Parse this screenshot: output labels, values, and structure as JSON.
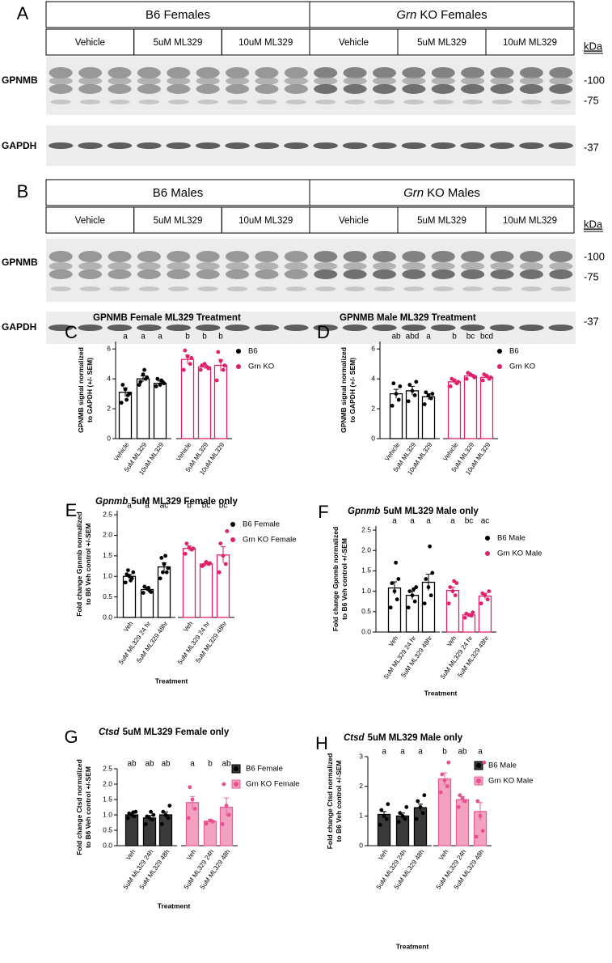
{
  "blots": [
    {
      "panel": "A",
      "groups": [
        {
          "name": "B6 Females",
          "treatments": [
            "Vehicle",
            "5uM ML329",
            "10uM ML329"
          ]
        },
        {
          "name_em": "Grn",
          "name": "KO Females",
          "treatments": [
            "Vehicle",
            "5uM ML329",
            "10uM ML329"
          ]
        }
      ],
      "rows": [
        "GPNMB",
        "GAPDH"
      ],
      "kda": "kDa",
      "markers": [
        "-100",
        "-75",
        "-37"
      ]
    },
    {
      "panel": "B",
      "groups": [
        {
          "name": "B6 Males",
          "treatments": [
            "Vehicle",
            "5uM ML329",
            "10uM ML329"
          ]
        },
        {
          "name_em": "Grn",
          "name": "KO Males",
          "treatments": [
            "Vehicle",
            "5uM ML329",
            "10uM ML329"
          ]
        }
      ],
      "rows": [
        "GPNMB",
        "GAPDH"
      ],
      "kda": "kDa",
      "markers": [
        "-100",
        "-75",
        "-37"
      ]
    }
  ],
  "chart_data": [
    {
      "type": "bar",
      "panel": "C",
      "title": "GPNMB Female ML329 Treatment",
      "ylabel": [
        "GPNMB signal normalized",
        "to GAPDH (+/- SEM)"
      ],
      "categories": [
        "Vehicle",
        "5uM ML329",
        "10uM ML329",
        "Vehicle",
        "5uM ML329",
        "10uM ML329"
      ],
      "letters": [
        "a",
        "a",
        "a",
        "b",
        "b",
        "b"
      ],
      "ylim": [
        0,
        6.5
      ],
      "yticks": [
        0,
        2,
        4,
        6
      ],
      "filled": false,
      "series": [
        {
          "name": "B6",
          "color": "#000000",
          "values": [
            3.1,
            4.0,
            3.7,
            null,
            null,
            null
          ],
          "errors": [
            0.3,
            0.2,
            0.15,
            null,
            null,
            null
          ],
          "points": [
            [
              2.4,
              2.9,
              3.3,
              3.6,
              3.0,
              2.6
            ],
            [
              3.6,
              4.0,
              4.3,
              3.8,
              4.1,
              4.6
            ],
            [
              3.5,
              3.8,
              3.6,
              4.0,
              3.7,
              3.9
            ],
            null,
            null,
            null
          ]
        },
        {
          "name": "Grn KO",
          "color": "#e0206a",
          "values": [
            null,
            null,
            null,
            5.3,
            4.8,
            4.9
          ],
          "errors": [
            null,
            null,
            null,
            0.3,
            0.15,
            0.4
          ],
          "points": [
            null,
            null,
            null,
            [
              4.6,
              5.0,
              5.5,
              5.9,
              5.4
            ],
            [
              4.6,
              4.8,
              5.0,
              4.9,
              4.7
            ],
            [
              3.9,
              4.6,
              5.2,
              5.8,
              4.9
            ]
          ]
        }
      ]
    },
    {
      "type": "bar",
      "panel": "D",
      "title": "GPNMB Male ML329 Treatment",
      "ylabel": [
        "GPNMB signal normalized",
        "to GAPDH (+/- SEM)"
      ],
      "categories": [
        "Vehicle",
        "5uM ML329",
        "10uM ML329",
        "Vehicle",
        "5uM ML329",
        "10uM ML329"
      ],
      "letters": [
        "ab",
        "abd",
        "a",
        "b",
        "bc",
        "bcd"
      ],
      "ylim": [
        0,
        6.5
      ],
      "yticks": [
        0,
        2,
        4,
        6
      ],
      "filled": false,
      "series": [
        {
          "name": "B6",
          "color": "#000000",
          "values": [
            3.0,
            3.2,
            2.8,
            null,
            null,
            null
          ],
          "errors": [
            0.3,
            0.3,
            0.2,
            null,
            null,
            null
          ],
          "points": [
            [
              2.2,
              2.6,
              3.0,
              3.7,
              3.5
            ],
            [
              2.5,
              2.9,
              3.2,
              3.6,
              3.8
            ],
            [
              2.3,
              2.7,
              2.9,
              3.1,
              3.0
            ],
            null,
            null,
            null
          ]
        },
        {
          "name": "Grn KO",
          "color": "#e0206a",
          "values": [
            null,
            null,
            null,
            3.8,
            4.2,
            4.1
          ],
          "errors": [
            null,
            null,
            null,
            0.15,
            0.1,
            0.1
          ],
          "points": [
            null,
            null,
            null,
            [
              3.5,
              3.7,
              3.9,
              4.0,
              3.8
            ],
            [
              4.0,
              4.2,
              4.3,
              4.4,
              4.1
            ],
            [
              3.9,
              4.0,
              4.2,
              4.3,
              4.1
            ]
          ]
        }
      ]
    },
    {
      "type": "bar",
      "panel": "E",
      "title_em": "Gpnmb",
      "title": "5uM ML329 Female only",
      "ylabel": [
        "Fold change Gpnmb normalized",
        "to B6 Veh control +/-SEM"
      ],
      "xlabel": "Treatment",
      "categories": [
        "Veh",
        "5uM ML329 24 hr",
        "5uM ML329 48hr",
        "Veh",
        "5uM ML329 24 hr",
        "5uM ML329 48hr"
      ],
      "letters": [
        "a",
        "a",
        "ac",
        "b",
        "bc",
        "bc"
      ],
      "ylim": [
        0,
        2.6
      ],
      "yticks": [
        {
          "value": 0,
          "label": "0.0"
        },
        0.5,
        {
          "value": 1,
          "label": "1.0"
        },
        1.5,
        {
          "value": 2,
          "label": "2.0"
        },
        2.5
      ],
      "filled": false,
      "series": [
        {
          "name": "B6 Female",
          "color": "#000000",
          "values": [
            1.0,
            0.68,
            1.23,
            null,
            null,
            null
          ],
          "errors": [
            0.05,
            0.04,
            0.1,
            null,
            null,
            null
          ],
          "points": [
            [
              0.85,
              0.95,
              1.0,
              1.05,
              1.1,
              0.9,
              1.15
            ],
            [
              0.6,
              0.65,
              0.7,
              0.75,
              0.62,
              0.72
            ],
            [
              0.95,
              1.1,
              1.3,
              1.45,
              1.2,
              1.5,
              1.1
            ],
            null,
            null,
            null
          ]
        },
        {
          "name": "Grn KO Female",
          "color": "#e0206a",
          "values": [
            null,
            null,
            null,
            1.68,
            1.3,
            1.52
          ],
          "errors": [
            null,
            null,
            null,
            0.06,
            0.05,
            0.2
          ],
          "points": [
            null,
            null,
            null,
            [
              1.55,
              1.65,
              1.7,
              1.8,
              1.68
            ],
            [
              1.25,
              1.3,
              1.35,
              1.28,
              1.32
            ],
            [
              1.1,
              1.3,
              1.5,
              1.8,
              2.1
            ]
          ]
        }
      ]
    },
    {
      "type": "bar",
      "panel": "F",
      "title_em": "Gpnmb",
      "title": "5uM ML329 Male only",
      "ylabel": [
        "Fold change Gpnmb normalized",
        "to B6 Veh control +/-SEM"
      ],
      "xlabel": "Treatment",
      "categories": [
        "Veh",
        "5uM ML329 24 hr",
        "5uM ML329 48hr",
        "Veh",
        "5uM ML329 24 hr",
        "5uM ML329 48hr"
      ],
      "letters": [
        "a",
        "a",
        "a",
        "a",
        "bc",
        "ac"
      ],
      "ylim": [
        0,
        2.6
      ],
      "yticks": [
        {
          "value": 0,
          "label": "0.0"
        },
        0.5,
        {
          "value": 1,
          "label": "1.0"
        },
        1.5,
        {
          "value": 2,
          "label": "2.0"
        },
        2.5
      ],
      "filled": false,
      "series": [
        {
          "name": "B6 Male",
          "color": "#000000",
          "values": [
            1.08,
            0.9,
            1.22,
            null,
            null,
            null
          ],
          "errors": [
            0.15,
            0.1,
            0.2,
            null,
            null,
            null
          ],
          "points": [
            [
              0.6,
              0.8,
              1.0,
              1.2,
              1.3,
              1.7
            ],
            [
              0.6,
              0.75,
              0.9,
              1.0,
              1.1,
              1.05
            ],
            [
              0.7,
              0.9,
              1.1,
              1.3,
              1.45,
              2.1
            ],
            null,
            null,
            null
          ]
        },
        {
          "name": "Grn KO Male",
          "color": "#e0206a",
          "values": [
            null,
            null,
            null,
            1.02,
            0.42,
            0.88
          ],
          "errors": [
            null,
            null,
            null,
            0.08,
            0.03,
            0.07
          ],
          "points": [
            null,
            null,
            null,
            [
              0.7,
              0.9,
              1.0,
              1.1,
              1.2,
              1.25
            ],
            [
              0.35,
              0.4,
              0.42,
              0.45,
              0.48
            ],
            [
              0.7,
              0.8,
              0.9,
              0.95,
              1.0
            ]
          ]
        }
      ]
    },
    {
      "type": "bar",
      "panel": "G",
      "title_em": "Ctsd",
      "title": "5uM ML329 Female only",
      "ylabel": [
        "Fold change Ctsd normalized",
        "to B6 Veh control +/-SEM"
      ],
      "xlabel": "Treatment",
      "categories": [
        "Veh",
        "5uM ML329 24h",
        "5uM ML329 48h",
        "Veh",
        "5uM ML329 24h",
        "5uM ML329 48h"
      ],
      "letters": [
        "ab",
        "ab",
        "ab",
        "a",
        "b",
        "ab"
      ],
      "ylim": [
        0,
        2.5
      ],
      "yticks": [
        {
          "value": 0,
          "label": "0.0"
        },
        0.5,
        {
          "value": 1,
          "label": "1.0"
        },
        1.5,
        {
          "value": 2,
          "label": "2.0"
        },
        2.5
      ],
      "filled": true,
      "series": [
        {
          "name": "B6 Female",
          "color": "#3a3a3a",
          "values": [
            1.0,
            0.9,
            1.0,
            null,
            null,
            null
          ],
          "errors": [
            0.05,
            0.08,
            0.1,
            null,
            null,
            null
          ],
          "points": [
            [
              0.9,
              0.95,
              1.0,
              1.05,
              1.1,
              1.08
            ],
            [
              0.7,
              0.85,
              0.9,
              0.95,
              1.0,
              1.1
            ],
            [
              0.7,
              0.9,
              1.0,
              1.1,
              1.3
            ],
            null,
            null,
            null
          ]
        },
        {
          "name": "Grn KO Female",
          "color": "#f2a1c0",
          "values": [
            null,
            null,
            null,
            1.4,
            0.8,
            1.25
          ],
          "errors": [
            null,
            null,
            null,
            0.2,
            0.05,
            0.3
          ],
          "points": [
            null,
            null,
            null,
            [
              0.9,
              1.2,
              1.5,
              1.9
            ],
            [
              0.72,
              0.78,
              0.82
            ],
            [
              0.7,
              1.0,
              1.3,
              2.0
            ]
          ]
        }
      ]
    },
    {
      "type": "bar",
      "panel": "H",
      "title_em": "Ctsd",
      "title": "5uM ML329 Male only",
      "ylabel": [
        "Fold change Ctsd normalized",
        "to B6 Veh control +/-SEM"
      ],
      "xlabel": "Treatment",
      "categories": [
        "Veh",
        "5uM ML329 24h",
        "5uM ML329 48h",
        "Veh",
        "5uM ML329 24h",
        "5uM ML329 48h"
      ],
      "letters": [
        "a",
        "a",
        "a",
        "b",
        "ab",
        "a"
      ],
      "ylim": [
        0,
        3
      ],
      "yticks": [
        0,
        1,
        2,
        3
      ],
      "filled": true,
      "series": [
        {
          "name": "B6 Male",
          "color": "#3a3a3a",
          "values": [
            1.05,
            1.0,
            1.28,
            null,
            null,
            null
          ],
          "errors": [
            0.1,
            0.1,
            0.12,
            null,
            null,
            null
          ],
          "points": [
            [
              0.7,
              0.9,
              1.0,
              1.2,
              1.4
            ],
            [
              0.8,
              0.9,
              1.0,
              1.1,
              1.3
            ],
            [
              0.9,
              1.1,
              1.3,
              1.5,
              1.7
            ],
            null,
            null,
            null
          ]
        },
        {
          "name": "Grn KO Male",
          "color": "#f2a1c0",
          "values": [
            null,
            null,
            null,
            2.25,
            1.55,
            1.15
          ],
          "errors": [
            null,
            null,
            null,
            0.2,
            0.1,
            0.3
          ],
          "points": [
            null,
            null,
            null,
            [
              1.8,
              2.0,
              2.2,
              2.4,
              2.8
            ],
            [
              1.3,
              1.5,
              1.6,
              1.7
            ],
            [
              0.3,
              0.5,
              1.0,
              1.5,
              2.8
            ]
          ]
        }
      ]
    }
  ]
}
